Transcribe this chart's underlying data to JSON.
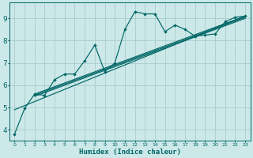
{
  "xlabel": "Humidex (Indice chaleur)",
  "background_color": "#cce8e8",
  "grid_color": "#aacccc",
  "line_color": "#006666",
  "xlim": [
    -0.5,
    23.5
  ],
  "ylim": [
    3.5,
    9.7
  ],
  "xticks": [
    0,
    1,
    2,
    3,
    4,
    5,
    6,
    7,
    8,
    9,
    10,
    11,
    12,
    13,
    14,
    15,
    16,
    17,
    18,
    19,
    20,
    21,
    22,
    23
  ],
  "yticks": [
    4,
    5,
    6,
    7,
    8,
    9
  ],
  "series": [
    [
      0,
      3.8
    ],
    [
      1,
      4.95
    ],
    [
      2,
      5.6
    ],
    [
      3,
      5.55
    ],
    [
      4,
      6.25
    ],
    [
      5,
      6.5
    ],
    [
      6,
      6.5
    ],
    [
      7,
      7.1
    ],
    [
      8,
      7.8
    ],
    [
      9,
      6.6
    ],
    [
      10,
      7.0
    ],
    [
      11,
      8.5
    ],
    [
      12,
      9.3
    ],
    [
      13,
      9.2
    ],
    [
      14,
      9.2
    ],
    [
      15,
      8.4
    ],
    [
      16,
      8.7
    ],
    [
      17,
      8.5
    ],
    [
      18,
      8.2
    ],
    [
      19,
      8.25
    ],
    [
      20,
      8.3
    ],
    [
      21,
      8.85
    ],
    [
      22,
      9.05
    ],
    [
      23,
      9.1
    ]
  ],
  "linear_series": [
    [
      [
        0,
        4.9
      ],
      [
        23,
        9.1
      ]
    ],
    [
      [
        2,
        5.55
      ],
      [
        23,
        9.05
      ]
    ],
    [
      [
        2,
        5.6
      ],
      [
        23,
        9.1
      ]
    ],
    [
      [
        2,
        5.5
      ],
      [
        23,
        9.0
      ]
    ]
  ],
  "figsize": [
    3.2,
    2.0
  ],
  "dpi": 100
}
